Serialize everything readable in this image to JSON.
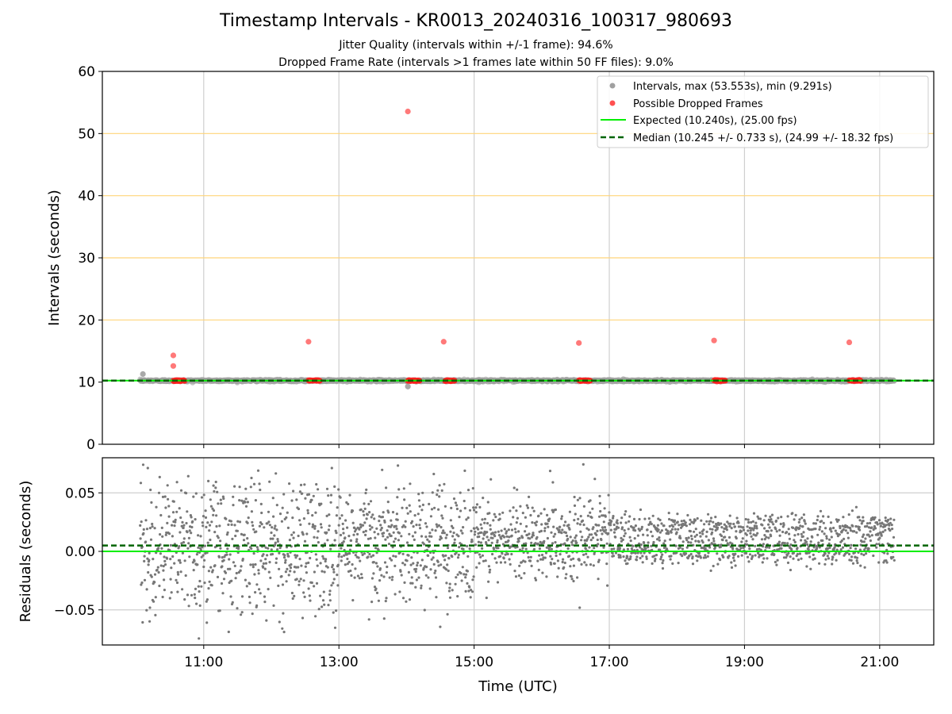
{
  "chart_data": [
    {
      "type": "scatter",
      "title": "Timestamp Intervals - KR0013_20240316_100317_980693",
      "subtitle_lines": [
        "Jitter Quality (intervals within +/-1 frame): 94.6%",
        "Dropped Frame Rate (intervals >1 frames late within 50 FF files): 9.0%"
      ],
      "xlabel": "",
      "ylabel": "Intervals (seconds)",
      "ylim": [
        0,
        60
      ],
      "yticks": [
        "0",
        "10",
        "20",
        "30",
        "40",
        "50",
        "60"
      ],
      "xlim_hours": [
        9.5,
        21.8
      ],
      "xticks": [
        "11:00",
        "13:00",
        "15:00",
        "17:00",
        "19:00",
        "21:00"
      ],
      "x_start_hour": 10.06,
      "x_end_hour": 21.22,
      "horizontal_guides": [
        20,
        30,
        40,
        50
      ],
      "horizontal_guide_color": "#ffd479",
      "grid": "x-only",
      "legend_position": "top-right",
      "series": [
        {
          "name": "Intervals, max (53.553s), min (9.291s)",
          "color": "#a0a0a0",
          "baseline_value": 10.24,
          "outliers": [
            {
              "x_hour": 10.1,
              "y": 11.3
            },
            {
              "x_hour": 14.02,
              "y": 9.29
            }
          ]
        },
        {
          "name": "Possible Dropped Frames",
          "color": "#ff2020",
          "clusters": [
            {
              "x_start_hour": 10.55,
              "x_end_hour": 10.72,
              "y": 10.24
            },
            {
              "x_start_hour": 12.55,
              "x_end_hour": 12.72,
              "y": 10.24
            },
            {
              "x_start_hour": 14.02,
              "x_end_hour": 14.2,
              "y": 10.24
            },
            {
              "x_start_hour": 14.57,
              "x_end_hour": 14.72,
              "y": 10.24
            },
            {
              "x_start_hour": 16.55,
              "x_end_hour": 16.72,
              "y": 10.24
            },
            {
              "x_start_hour": 18.55,
              "x_end_hour": 18.72,
              "y": 10.24
            },
            {
              "x_start_hour": 20.55,
              "x_end_hour": 20.72,
              "y": 10.24
            }
          ],
          "points": [
            {
              "x_hour": 10.55,
              "y": 14.3
            },
            {
              "x_hour": 10.55,
              "y": 12.6
            },
            {
              "x_hour": 12.55,
              "y": 16.5
            },
            {
              "x_hour": 14.02,
              "y": 53.553
            },
            {
              "x_hour": 14.55,
              "y": 16.5
            },
            {
              "x_hour": 16.55,
              "y": 16.3
            },
            {
              "x_hour": 18.55,
              "y": 16.7
            },
            {
              "x_hour": 20.55,
              "y": 16.4
            }
          ]
        },
        {
          "name": "Expected (10.240s), (25.00 fps)",
          "color": "#00ee00",
          "y": 10.24
        },
        {
          "name": "Median (10.245 +/- 0.733 s), (24.99 +/- 18.32 fps)",
          "color": "#006400",
          "y": 10.245
        }
      ]
    },
    {
      "type": "scatter",
      "xlabel": "Time (UTC)",
      "ylabel": "Residuals (seconds)",
      "ylim": [
        -0.08,
        0.08
      ],
      "yticks": [
        {
          "value": 0.05,
          "label": "0.05"
        },
        {
          "value": 0.0,
          "label": "0.00"
        },
        {
          "value": -0.05,
          "label": "−0.05"
        }
      ],
      "xticks": [
        "11:00",
        "13:00",
        "15:00",
        "17:00",
        "19:00",
        "21:00"
      ],
      "grid": "both",
      "residual_color": "#777777",
      "expected_residual": 0.0,
      "median_residual": 0.005,
      "expected_color": "#00ee00",
      "median_color": "#006400",
      "residual_distribution": [
        {
          "from_hour": 10.06,
          "to_hour": 13.0,
          "spread": 0.03,
          "offset": 0.005
        },
        {
          "from_hour": 13.0,
          "to_hour": 15.0,
          "spread": 0.025,
          "offset": 0.008
        },
        {
          "from_hour": 15.0,
          "to_hour": 17.0,
          "spread": 0.015,
          "bands": [
            0.0,
            0.02
          ]
        },
        {
          "from_hour": 17.0,
          "to_hour": 21.22,
          "spread": 0.006,
          "bands": [
            0.0,
            0.02
          ]
        }
      ]
    }
  ]
}
